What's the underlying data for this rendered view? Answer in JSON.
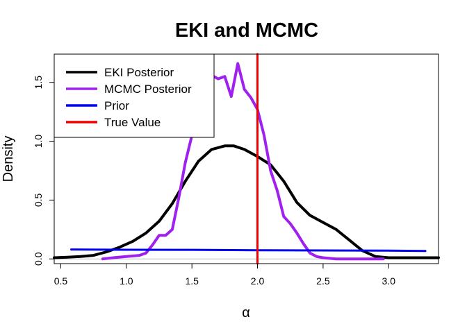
{
  "chart_data": {
    "type": "line",
    "title": "EKI and MCMC",
    "xlabel": "α",
    "ylabel": "Density",
    "xlim": [
      0.45,
      3.38
    ],
    "ylim": [
      -0.04,
      1.74
    ],
    "x_ticks": [
      0.5,
      1.0,
      1.5,
      2.0,
      2.5,
      3.0
    ],
    "x_tick_labels": [
      "0.5",
      "1.0",
      "1.5",
      "2.0",
      "2.5",
      "3.0"
    ],
    "y_ticks": [
      0.0,
      0.5,
      1.0,
      1.5
    ],
    "y_tick_labels": [
      "0.0",
      "0.5",
      "1.0",
      "1.5"
    ],
    "grid": false,
    "baseline": 0,
    "legend_position": "top-left",
    "series": [
      {
        "name": "EKI Posterior",
        "color": "#000000",
        "x": [
          0.45,
          0.55,
          0.65,
          0.75,
          0.85,
          0.95,
          1.05,
          1.15,
          1.25,
          1.35,
          1.45,
          1.55,
          1.65,
          1.75,
          1.82,
          1.9,
          2.0,
          2.1,
          2.2,
          2.3,
          2.4,
          2.5,
          2.6,
          2.7,
          2.8,
          2.9,
          3.0,
          3.1,
          3.2,
          3.38
        ],
        "y": [
          0.01,
          0.015,
          0.02,
          0.03,
          0.06,
          0.1,
          0.15,
          0.22,
          0.32,
          0.47,
          0.66,
          0.83,
          0.93,
          0.96,
          0.96,
          0.93,
          0.87,
          0.8,
          0.66,
          0.48,
          0.37,
          0.31,
          0.25,
          0.16,
          0.07,
          0.02,
          0.01,
          0.01,
          0.01,
          0.01
        ]
      },
      {
        "name": "MCMC Posterior",
        "color": "#a020f0",
        "x": [
          0.82,
          0.9,
          1.0,
          1.1,
          1.15,
          1.2,
          1.25,
          1.3,
          1.35,
          1.4,
          1.45,
          1.5,
          1.55,
          1.6,
          1.65,
          1.7,
          1.75,
          1.8,
          1.85,
          1.9,
          1.95,
          2.0,
          2.05,
          2.1,
          2.15,
          2.2,
          2.25,
          2.3,
          2.35,
          2.4,
          2.45,
          2.5,
          2.6,
          2.7,
          2.8,
          2.9,
          2.96
        ],
        "y": [
          0.0,
          0.01,
          0.02,
          0.03,
          0.05,
          0.12,
          0.2,
          0.2,
          0.25,
          0.52,
          0.82,
          1.05,
          1.28,
          1.52,
          1.56,
          1.53,
          1.55,
          1.38,
          1.66,
          1.44,
          1.37,
          1.27,
          1.05,
          0.75,
          0.58,
          0.36,
          0.3,
          0.22,
          0.13,
          0.05,
          0.02,
          0.01,
          0.0,
          0.0,
          0.0,
          0.0,
          0.0
        ]
      },
      {
        "name": "Prior",
        "color": "#0000ee",
        "x": [
          0.58,
          1.0,
          1.5,
          2.0,
          2.5,
          3.0,
          3.28
        ],
        "y": [
          0.08,
          0.078,
          0.077,
          0.074,
          0.072,
          0.07,
          0.068
        ]
      },
      {
        "name": "True Value",
        "color": "#ee0000",
        "x": [
          2.0,
          2.0
        ],
        "y": [
          -0.04,
          1.74
        ]
      }
    ]
  }
}
